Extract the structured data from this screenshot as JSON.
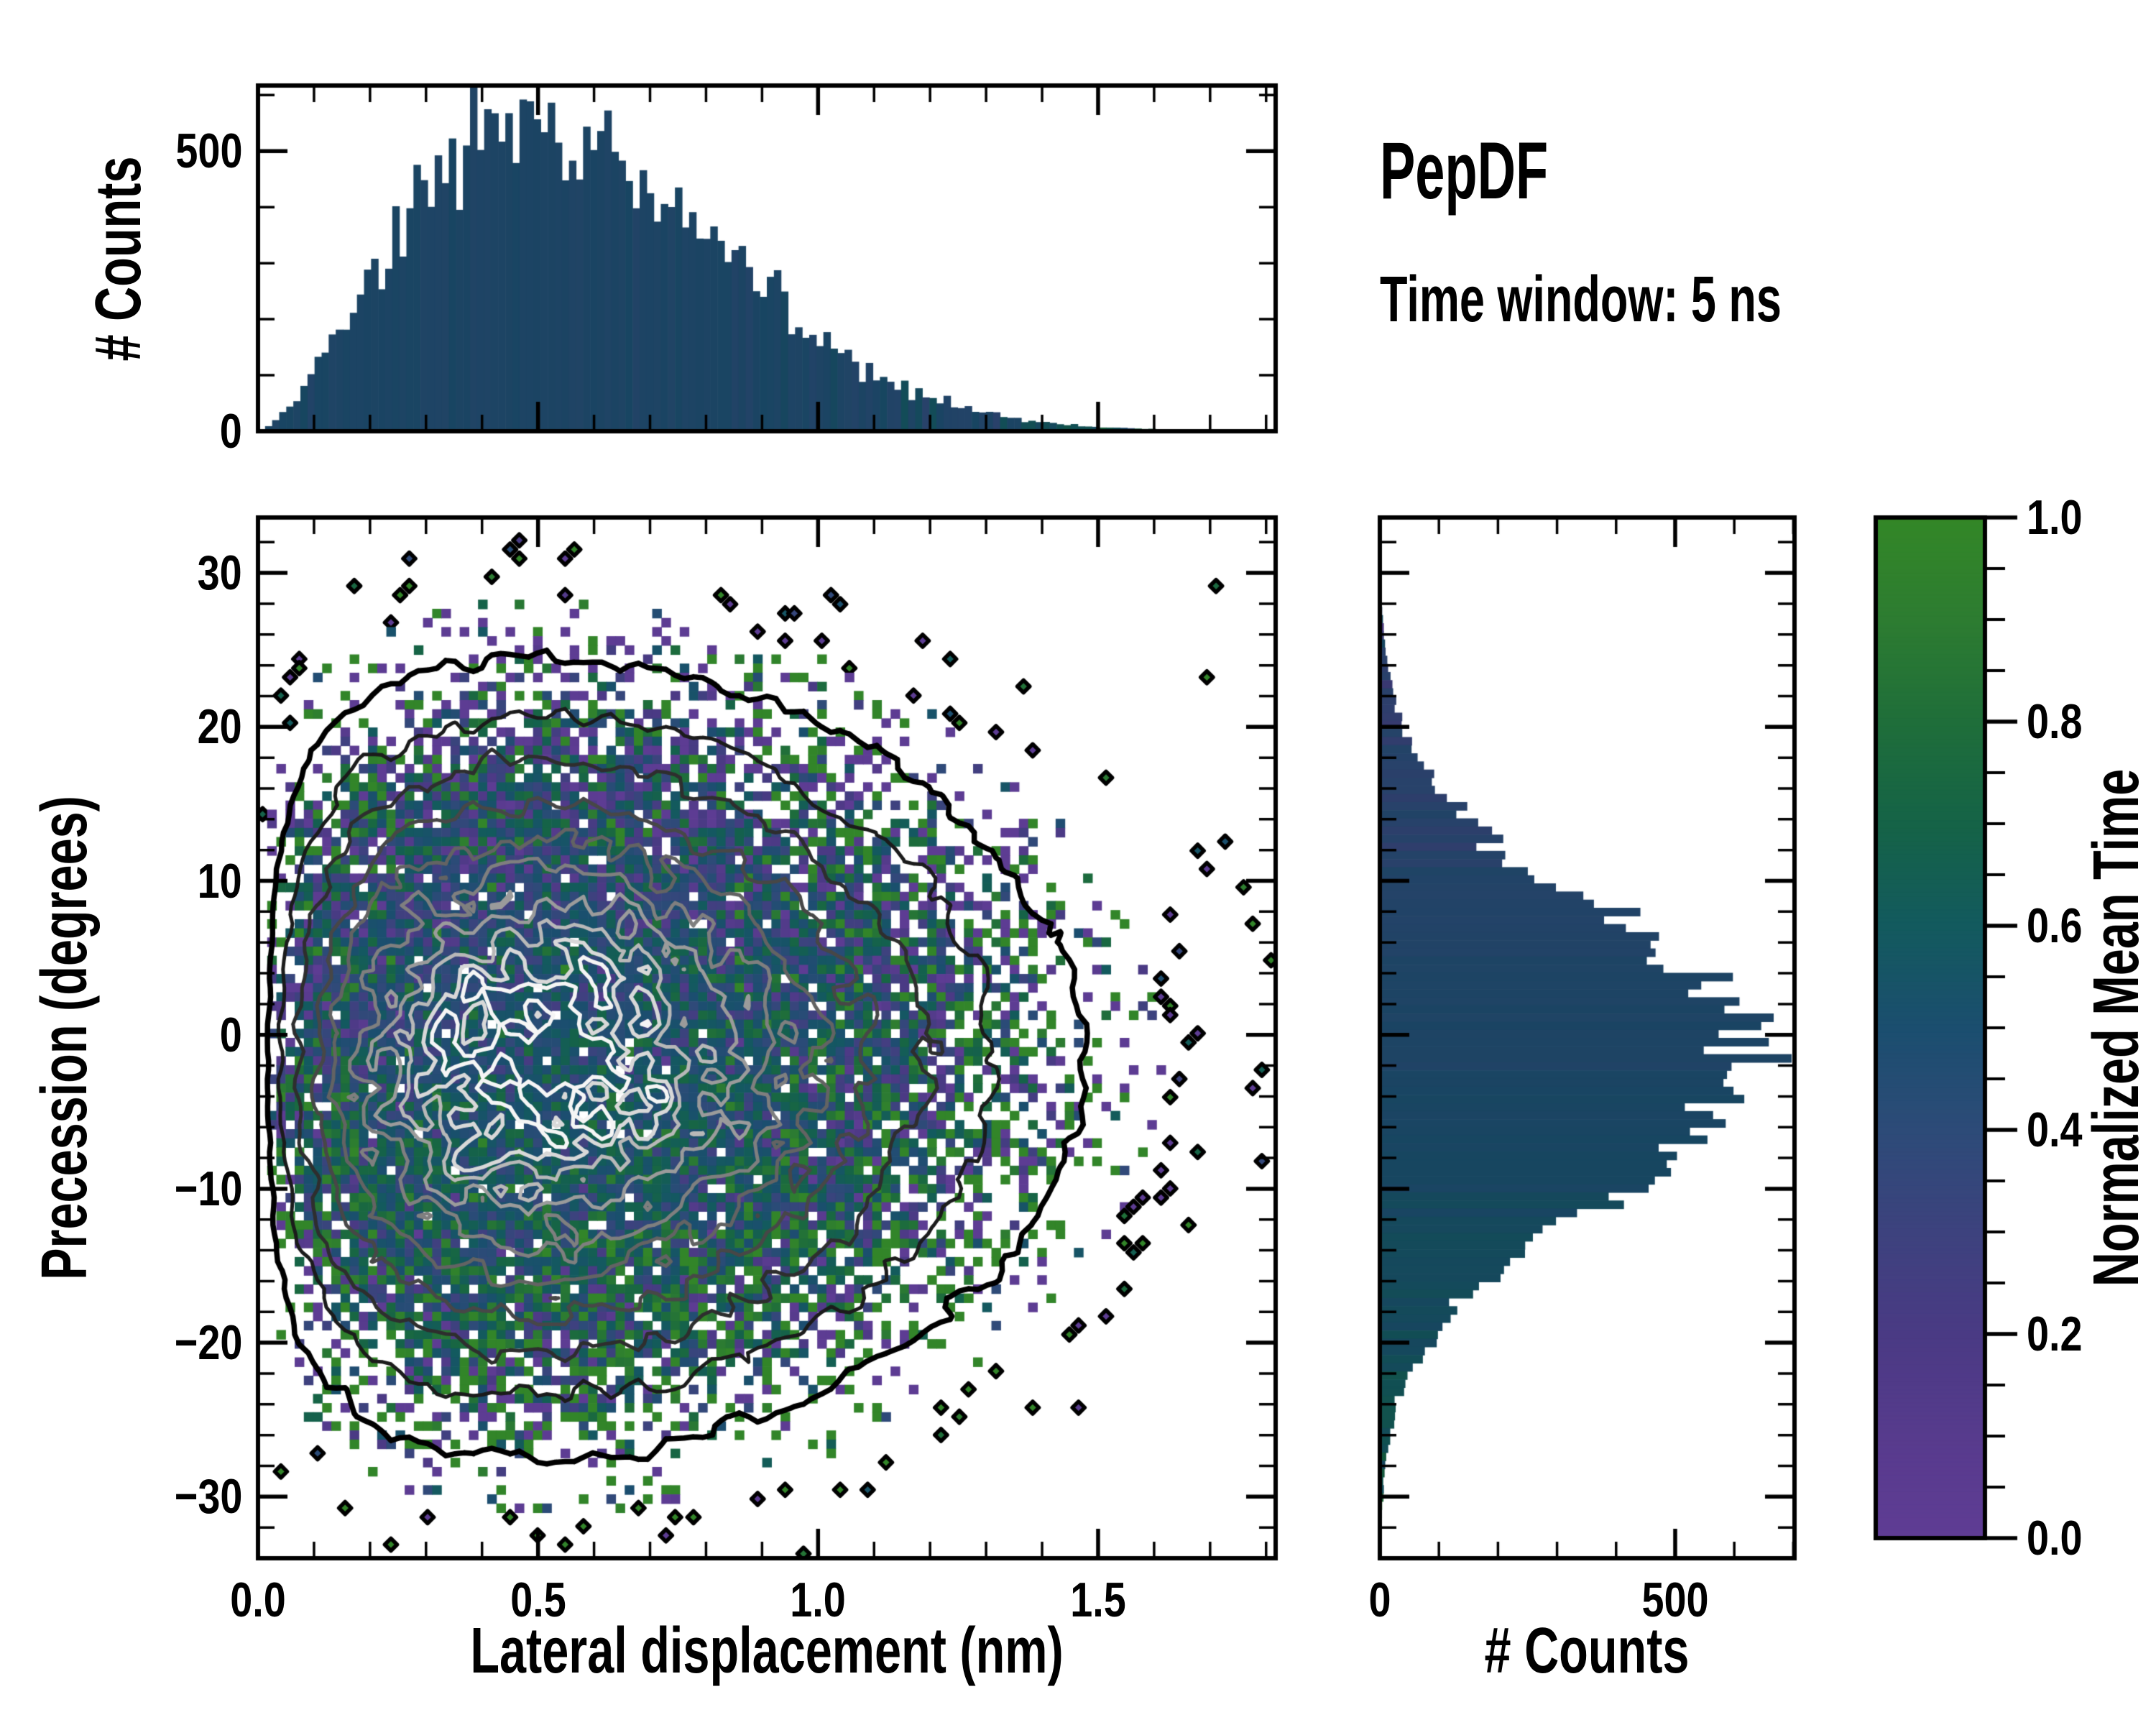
{
  "header": {
    "title": "PepDF",
    "subtitle": "Time window: 5 ns"
  },
  "chart_data": [
    {
      "id": "top_histogram",
      "type": "bar",
      "orientation": "vertical",
      "ylabel": "# Counts",
      "y_ticks": [
        0,
        500
      ],
      "y_tick_labels": [
        "0",
        "500"
      ],
      "y_minor_ticks": [
        100,
        200,
        300,
        400,
        600
      ],
      "y_max": 617,
      "x_range": [
        0,
        1.817
      ],
      "bins": 144,
      "bar_base_color": "#113f6b",
      "distribution": {
        "model": "gamma_like",
        "mode_nm": 0.5,
        "shape_k": 1.45,
        "peak_count": 550,
        "noise_frac": 0.09
      },
      "tail_tint": {
        "start_nm": 1.25,
        "value_shift_per_nm": 0.45
      }
    },
    {
      "id": "main_heatmap",
      "type": "heatmap",
      "xlabel": "Lateral displacement (nm)",
      "ylabel": "Precession (degrees)",
      "x_range": [
        0,
        1.817
      ],
      "y_range": [
        -34,
        33.6
      ],
      "x_ticks": [
        0.0,
        0.5,
        1.0,
        1.5
      ],
      "x_tick_labels": [
        "0.0",
        "0.5",
        "1.0",
        "1.5"
      ],
      "x_minor_step": 0.1,
      "y_ticks": [
        30,
        20,
        10,
        0,
        -10,
        -20,
        -30
      ],
      "y_tick_labels": [
        "30",
        "20",
        "10",
        "0",
        "−10",
        "−20",
        "−30"
      ],
      "y_minor_step": 2,
      "grid_nx": 111,
      "grid_ny": 114,
      "density": {
        "center_x_nm": 0.5,
        "center_y_deg": -1.5,
        "x_shape_k": 1.45,
        "y_sigma_deg": 9.2,
        "peak_cell_count": 18,
        "hole_fraction": 0.045,
        "diamond_lambda_threshold": 0.1
      },
      "value_model": {
        "base": 0.5,
        "y_bias_per_deg": -0.0055,
        "x_bias_per_nm": 0.05,
        "noise_scale": 0.55
      },
      "contour_levels": [
        {
          "level": 0.018,
          "color": "#000000",
          "lw": 7.5
        },
        {
          "level": 0.055,
          "color": "#1b1b1b",
          "lw": 5
        },
        {
          "level": 0.115,
          "color": "#2e2e2e",
          "lw": 5
        },
        {
          "level": 0.2,
          "color": "#474747",
          "lw": 5
        },
        {
          "level": 0.3,
          "color": "#636363",
          "lw": 5
        },
        {
          "level": 0.42,
          "color": "#7f7f7f",
          "lw": 5
        },
        {
          "level": 0.55,
          "color": "#9b9b9b",
          "lw": 5
        },
        {
          "level": 0.68,
          "color": "#b8b8b8",
          "lw": 5
        },
        {
          "level": 0.8,
          "color": "#d8d8d8",
          "lw": 5.5
        },
        {
          "level": 0.9,
          "color": "#f5f5f5",
          "lw": 5.5
        }
      ],
      "colormap": [
        {
          "v": 0.0,
          "color": "#5f3c94"
        },
        {
          "v": 0.1,
          "color": "#573b8d"
        },
        {
          "v": 0.2,
          "color": "#4a3a84"
        },
        {
          "v": 0.3,
          "color": "#3d427e"
        },
        {
          "v": 0.4,
          "color": "#2d4b78"
        },
        {
          "v": 0.5,
          "color": "#1b4e6f"
        },
        {
          "v": 0.6,
          "color": "#135a5e"
        },
        {
          "v": 0.7,
          "color": "#156347"
        },
        {
          "v": 0.8,
          "color": "#1f6e3a"
        },
        {
          "v": 0.9,
          "color": "#2d7c31"
        },
        {
          "v": 1.0,
          "color": "#338727"
        }
      ]
    },
    {
      "id": "right_histogram",
      "type": "bar",
      "orientation": "horizontal",
      "xlabel": "# Counts",
      "x_ticks": [
        0,
        500
      ],
      "x_tick_labels": [
        "0",
        "500"
      ],
      "x_minor_ticks": [
        100,
        200,
        300,
        400,
        600,
        700
      ],
      "x_max": 702,
      "bins": 128,
      "bar_base_color": "#113f6b",
      "distribution": {
        "model": "gaussian",
        "center_deg": -1.5,
        "sigma_deg": 9.2,
        "peak_count": 620,
        "noise_frac": 0.09
      },
      "tail_tint": {
        "value_shift_per_deg": -0.0048
      }
    },
    {
      "id": "colorbar",
      "type": "colorbar",
      "label": "Normalized Mean Time",
      "range": [
        0,
        1
      ],
      "ticks": [
        0.0,
        0.2,
        0.4,
        0.6,
        0.8,
        1.0
      ],
      "tick_labels": [
        "0.0",
        "0.2",
        "0.4",
        "0.6",
        "0.8",
        "1.0"
      ],
      "minor_step": 0.05
    }
  ]
}
